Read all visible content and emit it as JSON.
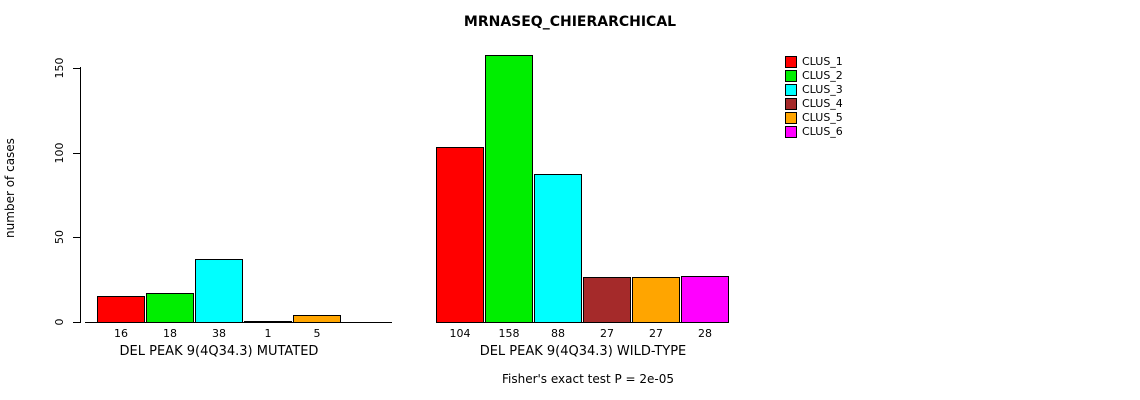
{
  "title": "MRNASEQ_CHIERARCHICAL",
  "y_axis": {
    "label": "number of cases",
    "ticks": [
      0,
      50,
      100,
      150
    ]
  },
  "footer": "Fisher's exact test P = 2e-05",
  "legend": [
    {
      "label": "CLUS_1",
      "color": "#FF0000"
    },
    {
      "label": "CLUS_2",
      "color": "#00EE00"
    },
    {
      "label": "CLUS_3",
      "color": "#00FFFF"
    },
    {
      "label": "CLUS_4",
      "color": "#A52A2A"
    },
    {
      "label": "CLUS_5",
      "color": "#FFA500"
    },
    {
      "label": "CLUS_6",
      "color": "#FF00FF"
    }
  ],
  "chart_data": {
    "type": "bar",
    "title": "MRNASEQ_CHIERARCHICAL",
    "ylabel": "number of cases",
    "xlabel": "",
    "ylim": [
      0,
      158
    ],
    "yticks": [
      0,
      50,
      100,
      150
    ],
    "grid": false,
    "legend_position": "top-right",
    "series_names": [
      "CLUS_1",
      "CLUS_2",
      "CLUS_3",
      "CLUS_4",
      "CLUS_5",
      "CLUS_6"
    ],
    "series_colors": [
      "#FF0000",
      "#00EE00",
      "#00FFFF",
      "#A52A2A",
      "#FFA500",
      "#FF00FF"
    ],
    "groups": [
      {
        "label": "DEL PEAK 9(4Q34.3) MUTATED",
        "series": [
          "CLUS_1",
          "CLUS_2",
          "CLUS_3",
          "CLUS_4",
          "CLUS_5"
        ],
        "values": [
          16,
          18,
          38,
          1,
          5
        ],
        "colors": [
          "#FF0000",
          "#00EE00",
          "#00FFFF",
          "#A52A2A",
          "#FFA500"
        ]
      },
      {
        "label": "DEL PEAK 9(4Q34.3) WILD-TYPE",
        "series": [
          "CLUS_1",
          "CLUS_2",
          "CLUS_3",
          "CLUS_4",
          "CLUS_5",
          "CLUS_6"
        ],
        "values": [
          104,
          158,
          88,
          27,
          27,
          28
        ],
        "colors": [
          "#FF0000",
          "#00EE00",
          "#00FFFF",
          "#A52A2A",
          "#FFA500",
          "#FF00FF"
        ]
      }
    ],
    "annotation": "Fisher's exact test P = 2e-05"
  }
}
